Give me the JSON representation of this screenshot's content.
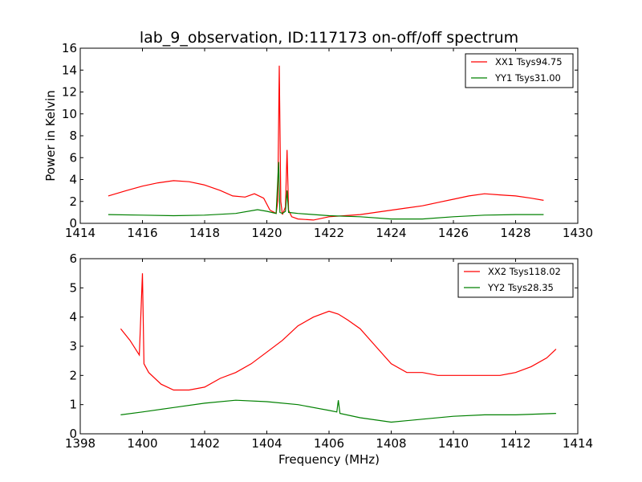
{
  "figure": {
    "title": "lab_9_observation, ID:117173 on-off/off spectrum",
    "xlabel": "Frequency (MHz)",
    "ylabel": "Power in Kelvin"
  },
  "chart_data": [
    {
      "type": "line",
      "xlim": [
        1414,
        1430
      ],
      "ylim": [
        0,
        16
      ],
      "xticks": [
        1414,
        1416,
        1418,
        1420,
        1422,
        1424,
        1426,
        1428,
        1430
      ],
      "yticks": [
        0,
        2,
        4,
        6,
        8,
        10,
        12,
        14,
        16
      ],
      "grid": false,
      "legend_position": "top-right",
      "series": [
        {
          "name": "XX1 Tsys94.75",
          "color": "#ff0000",
          "x": [
            1414.9,
            1415.5,
            1416.0,
            1416.5,
            1417.0,
            1417.5,
            1418.0,
            1418.5,
            1418.9,
            1419.3,
            1419.6,
            1419.9,
            1420.1,
            1420.3,
            1420.35,
            1420.4,
            1420.45,
            1420.5,
            1420.6,
            1420.65,
            1420.7,
            1420.8,
            1421.0,
            1421.5,
            1422.0,
            1422.5,
            1423.0,
            1423.5,
            1424.0,
            1424.5,
            1425.0,
            1425.5,
            1426.0,
            1426.5,
            1427.0,
            1427.5,
            1428.0,
            1428.5,
            1428.9
          ],
          "y": [
            2.5,
            3.0,
            3.4,
            3.7,
            3.9,
            3.8,
            3.5,
            3.0,
            2.5,
            2.4,
            2.7,
            2.3,
            1.2,
            0.9,
            2.0,
            14.4,
            2.0,
            0.8,
            1.5,
            6.7,
            1.2,
            0.6,
            0.4,
            0.3,
            0.6,
            0.7,
            0.8,
            1.0,
            1.2,
            1.4,
            1.6,
            1.9,
            2.2,
            2.5,
            2.7,
            2.6,
            2.5,
            2.3,
            2.1
          ]
        },
        {
          "name": "YY1 Tsys31.00",
          "color": "#008000",
          "x": [
            1414.9,
            1416.0,
            1417.0,
            1418.0,
            1419.0,
            1419.7,
            1420.0,
            1420.3,
            1420.38,
            1420.42,
            1420.5,
            1420.6,
            1420.65,
            1420.7,
            1421.0,
            1422.0,
            1423.0,
            1424.0,
            1425.0,
            1426.0,
            1427.0,
            1428.0,
            1428.9
          ],
          "y": [
            0.8,
            0.75,
            0.7,
            0.75,
            0.9,
            1.25,
            1.1,
            0.9,
            5.6,
            1.0,
            0.9,
            1.1,
            3.0,
            1.0,
            0.9,
            0.7,
            0.6,
            0.4,
            0.4,
            0.6,
            0.75,
            0.8,
            0.8
          ]
        }
      ]
    },
    {
      "type": "line",
      "xlim": [
        1398,
        1414
      ],
      "ylim": [
        0,
        6
      ],
      "xticks": [
        1398,
        1400,
        1402,
        1404,
        1406,
        1408,
        1410,
        1412,
        1414
      ],
      "yticks": [
        0,
        1,
        2,
        3,
        4,
        5,
        6
      ],
      "grid": false,
      "legend_position": "top-right",
      "series": [
        {
          "name": "XX2 Tsys118.02",
          "color": "#ff0000",
          "x": [
            1399.3,
            1399.6,
            1399.9,
            1400.0,
            1400.05,
            1400.2,
            1400.6,
            1401.0,
            1401.5,
            1402.0,
            1402.5,
            1403.0,
            1403.5,
            1404.0,
            1404.5,
            1405.0,
            1405.5,
            1406.0,
            1406.3,
            1406.6,
            1407.0,
            1407.5,
            1408.0,
            1408.5,
            1409.0,
            1409.5,
            1410.0,
            1410.5,
            1411.0,
            1411.5,
            1412.0,
            1412.5,
            1413.0,
            1413.3
          ],
          "y": [
            3.6,
            3.2,
            2.7,
            5.5,
            2.4,
            2.1,
            1.7,
            1.5,
            1.5,
            1.6,
            1.9,
            2.1,
            2.4,
            2.8,
            3.2,
            3.7,
            4.0,
            4.2,
            4.1,
            3.9,
            3.6,
            3.0,
            2.4,
            2.1,
            2.1,
            2.0,
            2.0,
            2.0,
            2.0,
            2.0,
            2.1,
            2.3,
            2.6,
            2.9
          ]
        },
        {
          "name": "YY2 Tsys28.35",
          "color": "#008000",
          "x": [
            1399.3,
            1400.0,
            1401.0,
            1402.0,
            1403.0,
            1404.0,
            1405.0,
            1406.0,
            1406.25,
            1406.3,
            1406.35,
            1407.0,
            1408.0,
            1409.0,
            1410.0,
            1411.0,
            1412.0,
            1413.3
          ],
          "y": [
            0.65,
            0.75,
            0.9,
            1.05,
            1.15,
            1.1,
            1.0,
            0.8,
            0.75,
            1.15,
            0.7,
            0.55,
            0.4,
            0.5,
            0.6,
            0.65,
            0.65,
            0.7
          ]
        }
      ]
    }
  ]
}
